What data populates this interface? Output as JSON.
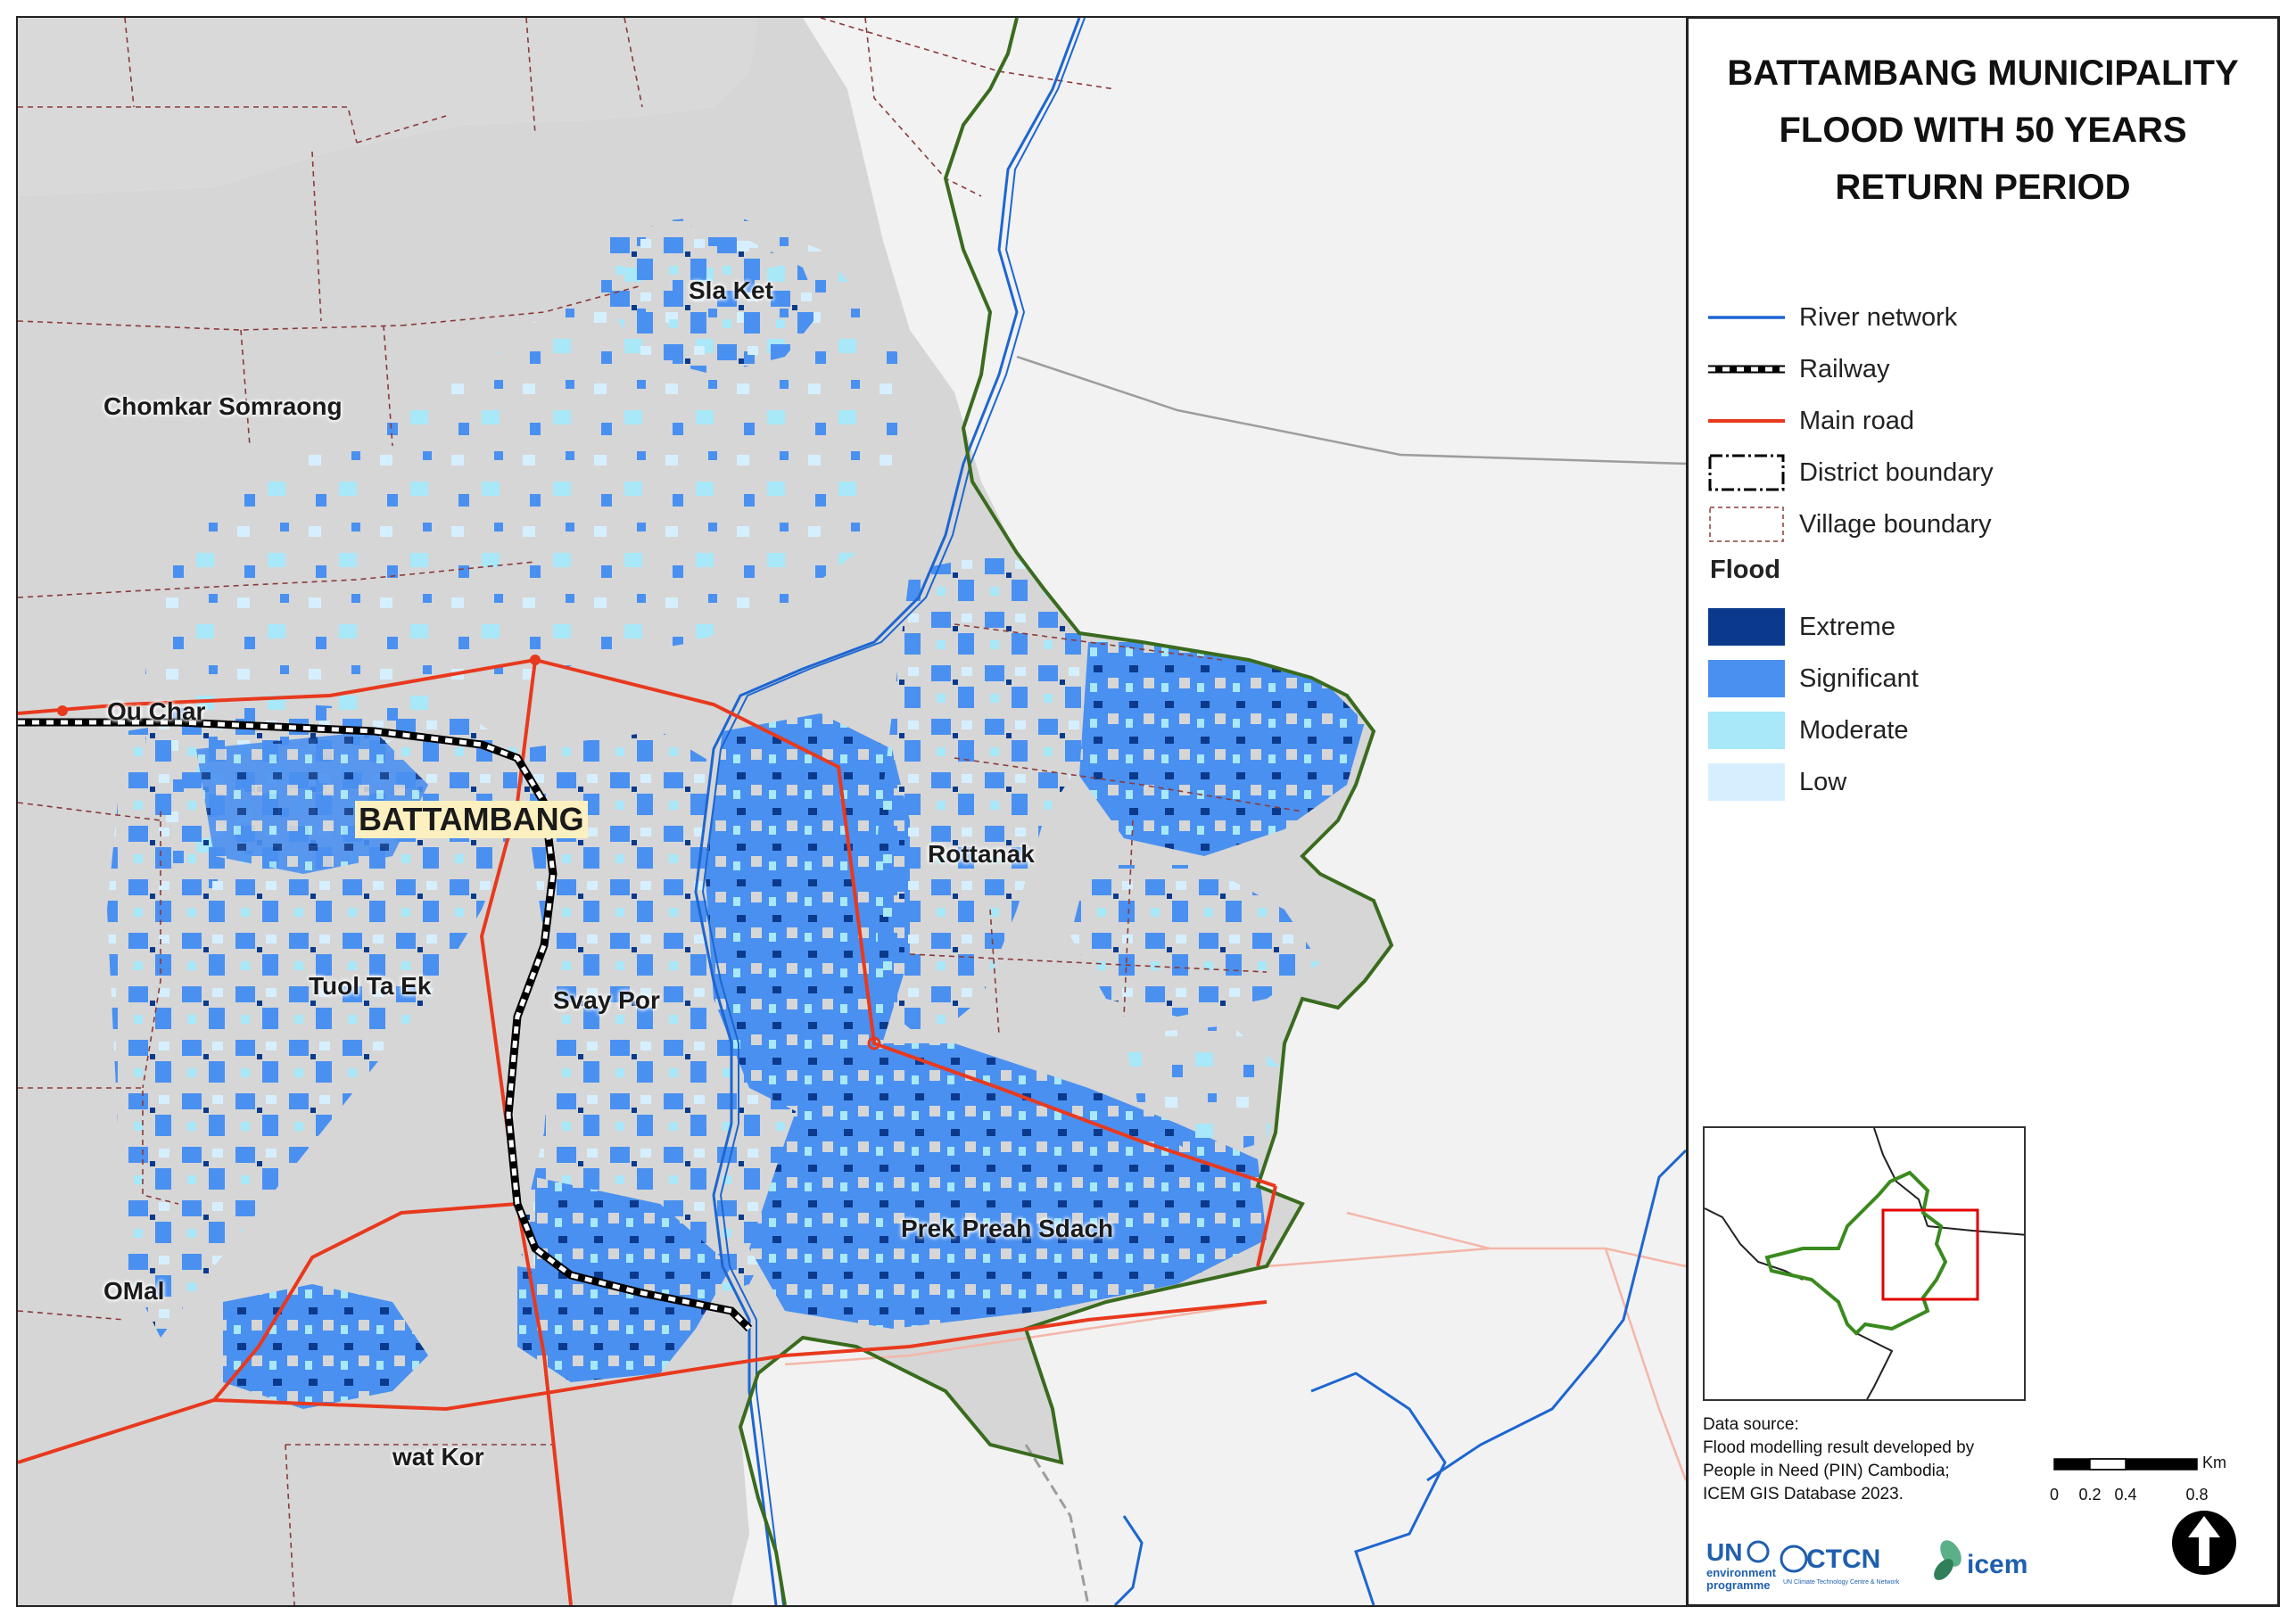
{
  "map": {
    "place_labels": {
      "sla_ket": "Sla Ket",
      "chomkar_somraong": "Chomkar Somraong",
      "ou_char": "Ou Char",
      "battambang": "BATTAMBANG",
      "rottanak": "Rottanak",
      "tuol_ta_ek": "Tuol Ta Ek",
      "svay_por": "Svay Por",
      "prek_preah_sdach": "Prek Preah Sdach",
      "omal": "OMal",
      "wat_kor": "wat Kor"
    },
    "colors": {
      "background": "#f2f2f2",
      "municipality_fill": "#d6d6d6",
      "district_outline": "#3a6b1e",
      "river": "#1e66d0",
      "main_road": "#e8391e",
      "railway": "#000000",
      "village_boundary": "#8b3a3a",
      "flood_extreme": "#0b3a8c",
      "flood_significant": "#4a90f0",
      "flood_moderate": "#a8e8f8",
      "flood_low": "#d6efff"
    }
  },
  "title": {
    "line1": "BATTAMBANG MUNICIPALITY",
    "line2": "FLOOD WITH 50 YEARS",
    "line3": "RETURN PERIOD"
  },
  "legend": {
    "river": "River network",
    "railway": "Railway",
    "main_road": "Main road",
    "district": "District boundary",
    "village": "Village boundary",
    "flood_heading": "Flood",
    "extreme": "Extreme",
    "significant": "Significant",
    "moderate": "Moderate",
    "low": "Low"
  },
  "source": {
    "line1": "Data source:",
    "line2": "Flood modelling result developed by",
    "line3": "People in Need (PIN) Cambodia;",
    "line4": "ICEM GIS Database 2023."
  },
  "scale": {
    "unit": "Km",
    "ticks": [
      "0",
      "0.2",
      "0.4",
      "0.8"
    ]
  },
  "logos": {
    "un_top": "UN",
    "un_bottom1": "environment",
    "un_bottom2": "programme",
    "ctcn": "CTCN",
    "ctcn_sub": "UN Climate Technology Centre & Network",
    "icem": "icem"
  }
}
